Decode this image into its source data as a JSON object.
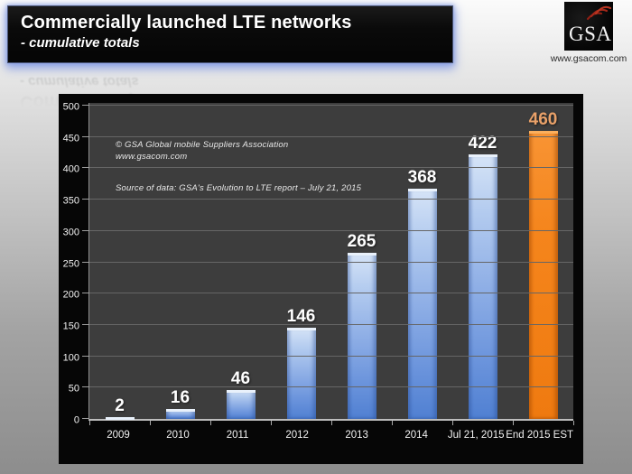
{
  "header": {
    "title": "Commercially launched LTE networks",
    "subtitle": "- cumulative totals"
  },
  "logo": {
    "text": "GSA",
    "website": "www.gsacom.com"
  },
  "chart_data": {
    "type": "bar",
    "title": "Commercially launched LTE networks - cumulative totals",
    "categories": [
      "2009",
      "2010",
      "2011",
      "2012",
      "2013",
      "2014",
      "Jul 21, 2015",
      "End 2015 EST"
    ],
    "values": [
      2,
      16,
      46,
      146,
      265,
      368,
      422,
      460
    ],
    "bar_types": [
      "blue",
      "blue",
      "blue",
      "blue",
      "blue",
      "blue",
      "blue",
      "orange"
    ],
    "xlabel": "",
    "ylabel": "",
    "ylim": [
      0,
      500
    ],
    "ytick_step": 50,
    "grid": true,
    "legend": "none",
    "annotations": {
      "copyright_line1": "© GSA Global mobile Suppliers Association",
      "copyright_line2": "www.gsacom.com",
      "source": "Source of data: GSA's Evolution to LTE report – July 21, 2015"
    },
    "colors": {
      "bar_blue": "#6b94dc",
      "bar_orange": "#ef7a10",
      "label_default": "#ffffff",
      "label_orange": "#e9a169",
      "plot_background": "#3d3d3d",
      "panel_background": "#060606",
      "gridline": "#666666",
      "header_glow": "#8098e2"
    }
  }
}
